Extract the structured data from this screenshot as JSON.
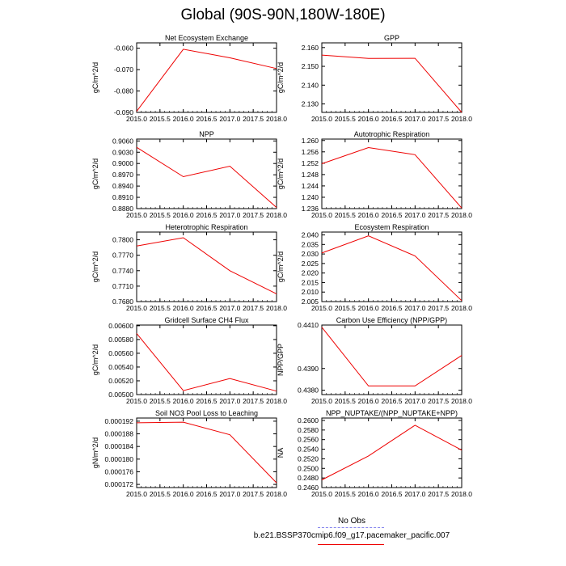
{
  "title": "Global (90S-90N,180W-180E)",
  "legend": {
    "obs_label": "No Obs",
    "case_label": "b.e21.BSSP370cmip6.f09_g17.pacemaker_pacific.007",
    "obs_color": "#8888ee",
    "case_color": "#ee0000"
  },
  "chart_data": [
    {
      "type": "line",
      "title": "Net Ecosystem Exchange",
      "ylabel": "gC/m^2/d",
      "xlabel": "",
      "x": [
        2015.0,
        2016.0,
        2017.0,
        2018.0
      ],
      "series": [
        {
          "values": [
            -0.0895,
            -0.0605,
            -0.0645,
            -0.0695
          ]
        }
      ],
      "xlim": [
        2015.0,
        2018.0
      ],
      "ylim": [
        -0.09,
        -0.0575
      ],
      "xticks": [
        "2015.0",
        "2015.5",
        "2016.0",
        "2016.5",
        "2017.0",
        "2017.5",
        "2018.0"
      ],
      "yticks": [
        -0.09,
        -0.08,
        -0.07,
        -0.06
      ],
      "ytick_labels": [
        "-0.090",
        "-0.080",
        "-0.070",
        "-0.060"
      ]
    },
    {
      "type": "line",
      "title": "GPP",
      "ylabel": "gC/m^2/d",
      "xlabel": "",
      "x": [
        2015.0,
        2016.0,
        2017.0,
        2018.0
      ],
      "series": [
        {
          "values": [
            2.156,
            2.1542,
            2.1543,
            2.1255
          ]
        }
      ],
      "xlim": [
        2015.0,
        2018.0
      ],
      "ylim": [
        2.1255,
        2.1625
      ],
      "xticks": [
        "2015.0",
        "2015.5",
        "2016.0",
        "2016.5",
        "2017.0",
        "2017.5",
        "2018.0"
      ],
      "yticks": [
        2.13,
        2.14,
        2.15,
        2.16
      ],
      "ytick_labels": [
        "2.130",
        "2.140",
        "2.150",
        "2.160"
      ]
    },
    {
      "type": "line",
      "title": "NPP",
      "ylabel": "gC/m^2/d",
      "xlabel": "",
      "x": [
        2015.0,
        2016.0,
        2017.0,
        2018.0
      ],
      "series": [
        {
          "values": [
            0.9043,
            0.8965,
            0.8993,
            0.8883
          ]
        }
      ],
      "xlim": [
        2015.0,
        2018.0
      ],
      "ylim": [
        0.888,
        0.9065
      ],
      "xticks": [
        "2015.0",
        "2015.5",
        "2016.0",
        "2016.5",
        "2017.0",
        "2017.5",
        "2018.0"
      ],
      "yticks": [
        0.888,
        0.891,
        0.894,
        0.897,
        0.9,
        0.903,
        0.906
      ],
      "ytick_labels": [
        "0.8880",
        "0.8910",
        "0.8940",
        "0.8970",
        "0.9000",
        "0.9030",
        "0.9060"
      ]
    },
    {
      "type": "line",
      "title": "Autotrophic Respiration",
      "ylabel": "gC/m^2/d",
      "xlabel": "",
      "x": [
        2015.0,
        2016.0,
        2017.0,
        2018.0
      ],
      "series": [
        {
          "values": [
            1.2518,
            1.2575,
            1.255,
            1.2362
          ]
        }
      ],
      "xlim": [
        2015.0,
        2018.0
      ],
      "ylim": [
        1.236,
        1.2605
      ],
      "xticks": [
        "2015.0",
        "2015.5",
        "2016.0",
        "2016.5",
        "2017.0",
        "2017.5",
        "2018.0"
      ],
      "yticks": [
        1.236,
        1.24,
        1.244,
        1.248,
        1.252,
        1.256,
        1.26
      ],
      "ytick_labels": [
        "1.236",
        "1.240",
        "1.244",
        "1.248",
        "1.252",
        "1.256",
        "1.260"
      ]
    },
    {
      "type": "line",
      "title": "Heterotrophic Respiration",
      "ylabel": "gC/m^2/d",
      "xlabel": "",
      "x": [
        2015.0,
        2016.0,
        2017.0,
        2018.0
      ],
      "series": [
        {
          "values": [
            0.7788,
            0.7804,
            0.774,
            0.7695
          ]
        }
      ],
      "xlim": [
        2015.0,
        2018.0
      ],
      "ylim": [
        0.768,
        0.7815
      ],
      "xticks": [
        "2015.0",
        "2015.5",
        "2016.0",
        "2016.5",
        "2017.0",
        "2017.5",
        "2018.0"
      ],
      "yticks": [
        0.768,
        0.771,
        0.774,
        0.777,
        0.78
      ],
      "ytick_labels": [
        "0.7680",
        "0.7710",
        "0.7740",
        "0.7770",
        "0.7800"
      ]
    },
    {
      "type": "line",
      "title": "Ecosystem Respiration",
      "ylabel": "gC/m^2/d",
      "xlabel": "",
      "x": [
        2015.0,
        2016.0,
        2017.0,
        2018.0
      ],
      "series": [
        {
          "values": [
            2.0305,
            2.0395,
            2.029,
            2.0055
          ]
        }
      ],
      "xlim": [
        2015.0,
        2018.0
      ],
      "ylim": [
        2.005,
        2.0415
      ],
      "xticks": [
        "2015.0",
        "2015.5",
        "2016.0",
        "2016.5",
        "2017.0",
        "2017.5",
        "2018.0"
      ],
      "yticks": [
        2.005,
        2.01,
        2.015,
        2.02,
        2.025,
        2.03,
        2.035,
        2.04
      ],
      "ytick_labels": [
        "2.005",
        "2.010",
        "2.015",
        "2.020",
        "2.025",
        "2.030",
        "2.035",
        "2.040"
      ]
    },
    {
      "type": "line",
      "title": "Gridcell Surface CH4 Flux",
      "ylabel": "gC/m^2/d",
      "xlabel": "",
      "x": [
        2015.0,
        2016.0,
        2017.0,
        2018.0
      ],
      "series": [
        {
          "values": [
            0.005888,
            0.005058,
            0.005232,
            0.00505
          ]
        }
      ],
      "xlim": [
        2015.0,
        2018.0
      ],
      "ylim": [
        0.005,
        0.00601
      ],
      "xticks": [
        "2015.0",
        "2015.5",
        "2016.0",
        "2016.5",
        "2017.0",
        "2017.5",
        "2018.0"
      ],
      "yticks": [
        0.005,
        0.0052,
        0.0054,
        0.0056,
        0.0058,
        0.006
      ],
      "ytick_labels": [
        "0.00500",
        "0.00520",
        "0.00540",
        "0.00560",
        "0.00580",
        "0.00600"
      ]
    },
    {
      "type": "line",
      "title": "Carbon Use Efficiency (NPP/GPP)",
      "ylabel": "NPP/GPP",
      "xlabel": "",
      "x": [
        2015.0,
        2016.0,
        2017.0,
        2018.0
      ],
      "series": [
        {
          "values": [
            0.4409,
            0.4382,
            0.4382,
            0.4396
          ]
        }
      ],
      "xlim": [
        2015.0,
        2018.0
      ],
      "ylim": [
        0.4378,
        0.441
      ],
      "xticks": [
        "2015.0",
        "2015.5",
        "2016.0",
        "2016.5",
        "2017.0",
        "2017.5",
        "2018.0"
      ],
      "yticks": [
        0.438,
        0.439,
        0.441
      ],
      "ytick_labels": [
        "0.4380",
        "0.4390",
        "0.4410"
      ]
    },
    {
      "type": "line",
      "title": "Soil NO3 Pool Loss to Leaching",
      "ylabel": "gN/m^2/d",
      "xlabel": "",
      "x": [
        2015.0,
        2016.0,
        2017.0,
        2018.0
      ],
      "series": [
        {
          "values": [
            0.0001915,
            0.0001917,
            0.0001877,
            0.0001725
          ]
        }
      ],
      "xlim": [
        2015.0,
        2018.0
      ],
      "ylim": [
        0.000171,
        0.000193
      ],
      "xticks": [
        "2015.0",
        "2015.5",
        "2016.0",
        "2016.5",
        "2017.0",
        "2017.5",
        "2018.0"
      ],
      "yticks": [
        0.000172,
        0.000176,
        0.00018,
        0.000184,
        0.000188,
        0.000192
      ],
      "ytick_labels": [
        "0.000172",
        "0.000176",
        "0.000180",
        "0.000184",
        "0.000188",
        "0.000192"
      ]
    },
    {
      "type": "line",
      "title": "NPP_NUPTAKE/(NPP_NUPTAKE+NPP)",
      "ylabel": "NA",
      "xlabel": "",
      "x": [
        2015.0,
        2016.0,
        2017.0,
        2018.0
      ],
      "series": [
        {
          "values": [
            0.2476,
            0.2526,
            0.259,
            0.2538
          ]
        }
      ],
      "xlim": [
        2015.0,
        2018.0
      ],
      "ylim": [
        0.246,
        0.2605
      ],
      "xticks": [
        "2015.0",
        "2015.5",
        "2016.0",
        "2016.5",
        "2017.0",
        "2017.5",
        "2018.0"
      ],
      "yticks": [
        0.246,
        0.248,
        0.25,
        0.252,
        0.254,
        0.256,
        0.258,
        0.26
      ],
      "ytick_labels": [
        "0.2460",
        "0.2480",
        "0.2500",
        "0.2520",
        "0.2540",
        "0.2560",
        "0.2580",
        "0.2600"
      ]
    }
  ]
}
